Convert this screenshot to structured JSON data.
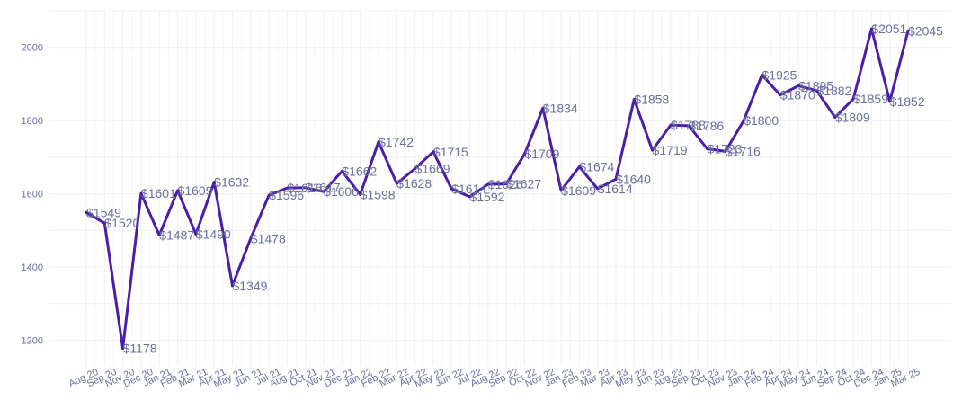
{
  "chart_data": {
    "type": "line",
    "title": "",
    "xlabel": "",
    "ylabel": "",
    "ylim": [
      1130,
      2100
    ],
    "yticks": [
      1200,
      1400,
      1600,
      1800,
      2000
    ],
    "grid": true,
    "line_color": "#4a1fa8",
    "label_color": "#6b6f9c",
    "label_prefix": "$",
    "categories": [
      "Aug 20",
      "Sep 20",
      "Nov 20",
      "Dec 20",
      "Jan 21",
      "Feb 21",
      "Mar 21",
      "Apr 21",
      "May 21",
      "Jun 21",
      "Jul 21",
      "Aug 21",
      "Oct 21",
      "Nov 21",
      "Dec 21",
      "Jan 22",
      "Feb 22",
      "Mar 22",
      "Apr 22",
      "May 22",
      "Jun 22",
      "Jul 22",
      "Aug 22",
      "Sep 22",
      "Oct 22",
      "Nov 22",
      "Jan 23",
      "Feb 23",
      "Mar 23",
      "Apr 23",
      "May 23",
      "Jun 23",
      "Aug 23",
      "Sep 23",
      "Oct 23",
      "Nov 23",
      "Jan 24",
      "Feb 24",
      "Apr 24",
      "May 24",
      "Jun 24",
      "Sep 24",
      "Oct 24",
      "Dec 24",
      "Jan 25",
      "Mar 25"
    ],
    "values": [
      1549,
      1520,
      1178,
      1601,
      1487,
      1609,
      1490,
      1632,
      1349,
      1478,
      1596,
      1616,
      1617,
      1606,
      1662,
      1598,
      1742,
      1628,
      1669,
      1715,
      1614,
      1592,
      1626,
      1627,
      1709,
      1834,
      1609,
      1674,
      1614,
      1640,
      1858,
      1719,
      1788,
      1786,
      1723,
      1716,
      1800,
      1925,
      1870,
      1895,
      1882,
      1809,
      1859,
      2051,
      1852,
      2045
    ],
    "data_labels": [
      "$1549",
      "$1520",
      "$1178",
      "$1601",
      "$1487",
      "$1609",
      "$1490",
      "$1632",
      "$1349",
      "$1478",
      "$1596",
      "$1616",
      "$1617",
      "$1606",
      "$1662",
      "$1598",
      "$1742",
      "$1628",
      "$1669",
      "$1715",
      "$1614",
      "$1592",
      "$1626",
      "$1627",
      "$1709",
      "$1834",
      "$1609",
      "$1674",
      "$1614",
      "$1640",
      "$1858",
      "$1719",
      "$1788",
      "$1786",
      "$1723",
      "$1716",
      "$1800",
      "$1925",
      "$1870",
      "$1895",
      "$1882",
      "$1809",
      "$1859",
      "$2051",
      "$1852",
      "$2045"
    ]
  }
}
